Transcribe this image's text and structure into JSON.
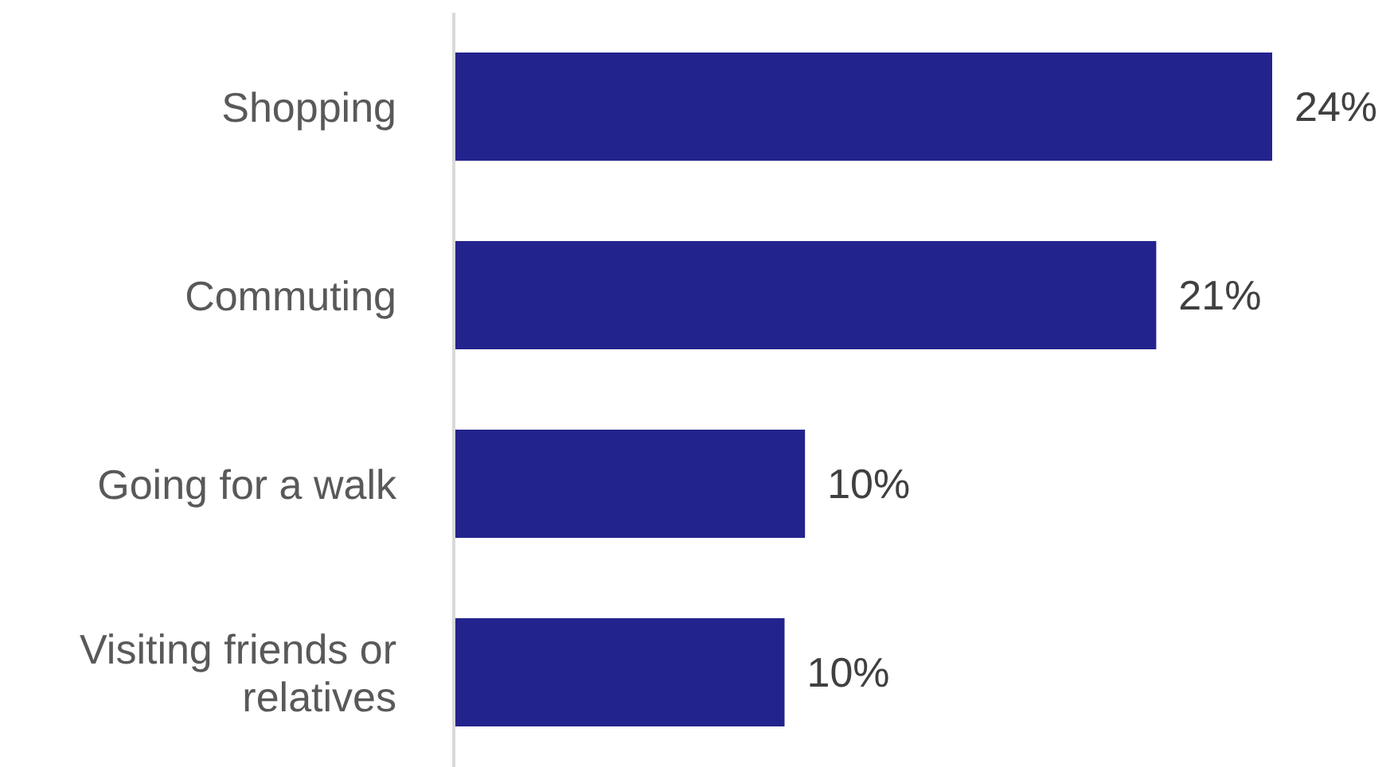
{
  "chart_data": {
    "type": "bar",
    "orientation": "horizontal",
    "categories": [
      "Shopping",
      "Commuting",
      "Going for a walk",
      "Visiting friends or relatives"
    ],
    "values": [
      24,
      20.6,
      10.3,
      9.7
    ],
    "value_labels": [
      "24%",
      "21%",
      "10%",
      "10%"
    ],
    "color": "#23238e"
  }
}
